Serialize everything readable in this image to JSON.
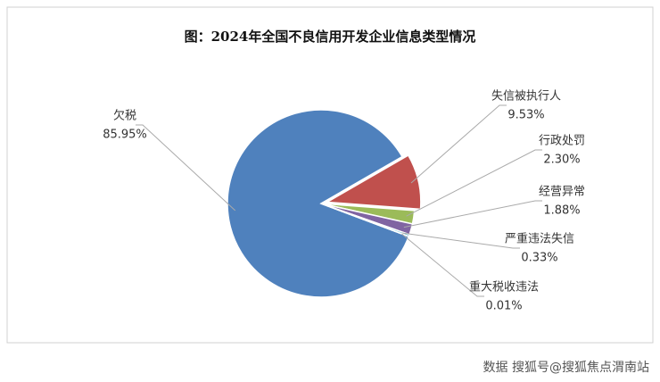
{
  "chart_data": {
    "type": "pie",
    "title": "图：2024年全国不良信用开发企业信息类型情况",
    "categories": [
      "欠税",
      "失信被执行人",
      "行政处罚",
      "经营异常",
      "严重违法失信",
      "重大税收违法"
    ],
    "values": [
      85.95,
      9.53,
      2.3,
      1.88,
      0.33,
      0.01
    ],
    "value_labels": [
      "85.95%",
      "9.53%",
      "2.30%",
      "1.88%",
      "0.33%",
      "0.01%"
    ],
    "colors": [
      "#4f81bd",
      "#c0504d",
      "#9bbb59",
      "#8064a2",
      "#4bacc6",
      "#f79646"
    ],
    "source": "数据 搜狐号@搜狐焦点渭南站"
  }
}
